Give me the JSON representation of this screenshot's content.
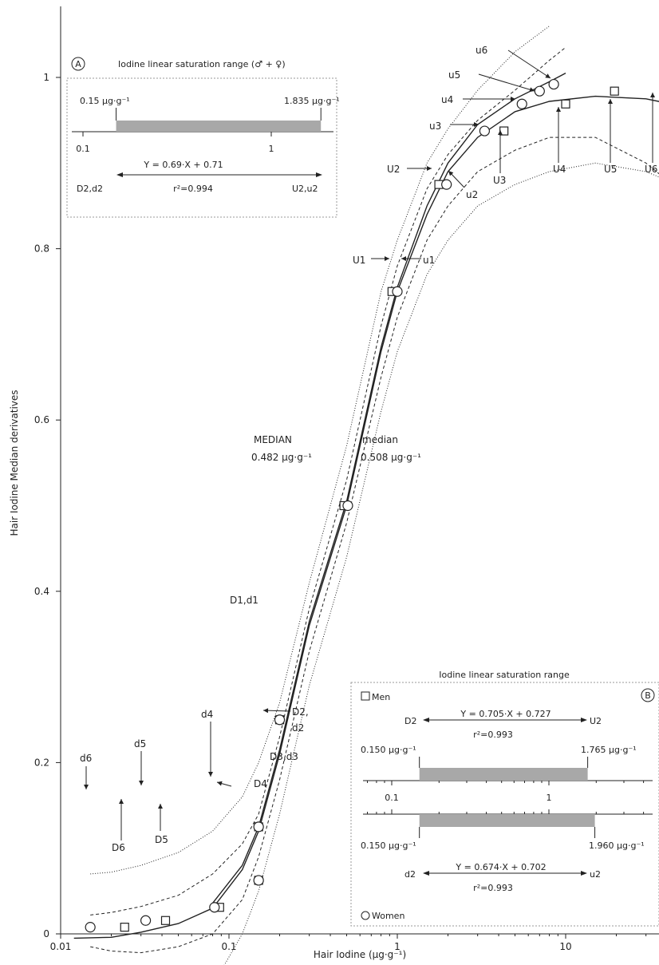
{
  "chart_data": {
    "type": "scatter",
    "xlabel": "Hair Iodine (µg·g⁻¹)",
    "ylabel": "Hair Iodine Median derivatives",
    "x_scale": "log",
    "xlim": [
      0.01,
      40
    ],
    "ylim": [
      0,
      1.05
    ],
    "x_ticks": [
      0.01,
      0.1,
      1,
      10
    ],
    "x_tick_labels": [
      "0.01",
      "0.1",
      "1",
      "10"
    ],
    "y_ticks": [
      0,
      0.2,
      0.4,
      0.6,
      0.8,
      1
    ],
    "y_tick_labels": [
      "0",
      "0.2",
      "0.4",
      "0.6",
      "0.8",
      "1"
    ],
    "series": [
      {
        "name": "Men",
        "marker": "square",
        "points": [
          {
            "label": "D6",
            "x": 0.024,
            "y": 0.0078
          },
          {
            "label": "D5",
            "x": 0.042,
            "y": 0.0156
          },
          {
            "label": "D4",
            "x": 0.088,
            "y": 0.031
          },
          {
            "label": "D3,d3",
            "x": 0.15,
            "y": 0.0625
          },
          {
            "label": "D2",
            "x": 0.15,
            "y": 0.125
          },
          {
            "label": "D1,d1",
            "x": 0.2,
            "y": 0.25
          },
          {
            "label": "MEDIAN",
            "x": 0.482,
            "y": 0.5
          },
          {
            "label": "U1",
            "x": 0.93,
            "y": 0.75
          },
          {
            "label": "U2",
            "x": 1.765,
            "y": 0.875
          },
          {
            "label": "U3",
            "x": 4.3,
            "y": 0.9375
          },
          {
            "label": "U4",
            "x": 10,
            "y": 0.969
          },
          {
            "label": "U5",
            "x": 19.5,
            "y": 0.984
          },
          {
            "label": "U6",
            "x": 37,
            "y": 0.992
          }
        ]
      },
      {
        "name": "Women",
        "marker": "circle",
        "points": [
          {
            "label": "d6",
            "x": 0.015,
            "y": 0.0078
          },
          {
            "label": "d5",
            "x": 0.032,
            "y": 0.0156
          },
          {
            "label": "d4",
            "x": 0.082,
            "y": 0.031
          },
          {
            "label": "d3",
            "x": 0.15,
            "y": 0.0625
          },
          {
            "label": "d2",
            "x": 0.15,
            "y": 0.125
          },
          {
            "label": "d1",
            "x": 0.2,
            "y": 0.25
          },
          {
            "label": "median",
            "x": 0.508,
            "y": 0.5
          },
          {
            "label": "u1",
            "x": 1.0,
            "y": 0.75
          },
          {
            "label": "u2",
            "x": 1.96,
            "y": 0.875
          },
          {
            "label": "u3",
            "x": 3.3,
            "y": 0.9375
          },
          {
            "label": "u4",
            "x": 5.5,
            "y": 0.969
          },
          {
            "label": "u5",
            "x": 7.0,
            "y": 0.984
          },
          {
            "label": "u6",
            "x": 8.5,
            "y": 0.992
          }
        ]
      }
    ],
    "curves": [
      {
        "style": "solid",
        "points": [
          [
            0.012,
            -0.005
          ],
          [
            0.02,
            -0.004
          ],
          [
            0.03,
            0.002
          ],
          [
            0.05,
            0.012
          ],
          [
            0.08,
            0.03
          ],
          [
            0.12,
            0.075
          ],
          [
            0.15,
            0.12
          ],
          [
            0.2,
            0.21
          ],
          [
            0.3,
            0.36
          ],
          [
            0.5,
            0.5
          ],
          [
            0.8,
            0.68
          ],
          [
            1.0,
            0.75
          ],
          [
            1.5,
            0.84
          ],
          [
            2.0,
            0.89
          ],
          [
            3.0,
            0.93
          ],
          [
            5.0,
            0.96
          ],
          [
            8.0,
            0.972
          ],
          [
            15,
            0.978
          ],
          [
            30,
            0.975
          ],
          [
            40,
            0.97
          ]
        ]
      },
      {
        "style": "solid",
        "points": [
          [
            0.08,
            0.036
          ],
          [
            0.12,
            0.08
          ],
          [
            0.15,
            0.125
          ],
          [
            0.2,
            0.215
          ],
          [
            0.3,
            0.365
          ],
          [
            0.5,
            0.505
          ],
          [
            0.8,
            0.685
          ],
          [
            1.0,
            0.755
          ],
          [
            1.5,
            0.85
          ],
          [
            2.0,
            0.9
          ],
          [
            3.0,
            0.945
          ],
          [
            5.0,
            0.975
          ],
          [
            8.0,
            0.995
          ],
          [
            10,
            1.005
          ]
        ]
      },
      {
        "style": "dashed",
        "points": [
          [
            0.015,
            0.022
          ],
          [
            0.02,
            0.025
          ],
          [
            0.03,
            0.032
          ],
          [
            0.05,
            0.045
          ],
          [
            0.08,
            0.07
          ],
          [
            0.12,
            0.105
          ],
          [
            0.15,
            0.14
          ],
          [
            0.2,
            0.23
          ],
          [
            0.3,
            0.38
          ],
          [
            0.5,
            0.53
          ],
          [
            0.8,
            0.71
          ],
          [
            1.0,
            0.78
          ],
          [
            1.5,
            0.87
          ],
          [
            2.0,
            0.91
          ],
          [
            3.0,
            0.95
          ],
          [
            5.0,
            0.985
          ],
          [
            8.0,
            1.02
          ],
          [
            10,
            1.035
          ]
        ]
      },
      {
        "style": "dashed",
        "points": [
          [
            0.015,
            -0.015
          ],
          [
            0.02,
            -0.02
          ],
          [
            0.03,
            -0.022
          ],
          [
            0.05,
            -0.015
          ],
          [
            0.08,
            0.0
          ],
          [
            0.12,
            0.04
          ],
          [
            0.15,
            0.09
          ],
          [
            0.2,
            0.18
          ],
          [
            0.3,
            0.33
          ],
          [
            0.5,
            0.48
          ],
          [
            0.8,
            0.65
          ],
          [
            1.0,
            0.72
          ],
          [
            1.5,
            0.81
          ],
          [
            2.0,
            0.85
          ],
          [
            3.0,
            0.89
          ],
          [
            5.0,
            0.915
          ],
          [
            8.0,
            0.93
          ],
          [
            15,
            0.93
          ],
          [
            30,
            0.9
          ],
          [
            40,
            0.88
          ]
        ]
      },
      {
        "style": "dotted",
        "points": [
          [
            0.015,
            0.07
          ],
          [
            0.02,
            0.072
          ],
          [
            0.03,
            0.08
          ],
          [
            0.05,
            0.095
          ],
          [
            0.08,
            0.12
          ],
          [
            0.12,
            0.16
          ],
          [
            0.15,
            0.2
          ],
          [
            0.2,
            0.27
          ],
          [
            0.3,
            0.41
          ],
          [
            0.5,
            0.57
          ],
          [
            0.8,
            0.75
          ],
          [
            1.0,
            0.81
          ],
          [
            1.5,
            0.9
          ],
          [
            2.0,
            0.94
          ],
          [
            3.0,
            0.985
          ],
          [
            5.0,
            1.03
          ],
          [
            8.0,
            1.06
          ]
        ]
      },
      {
        "style": "dotted",
        "points": [
          [
            0.015,
            -0.045
          ],
          [
            0.02,
            -0.06
          ],
          [
            0.03,
            -0.075
          ],
          [
            0.05,
            -0.08
          ],
          [
            0.08,
            -0.06
          ],
          [
            0.12,
            0.0
          ],
          [
            0.15,
            0.05
          ],
          [
            0.2,
            0.14
          ],
          [
            0.3,
            0.29
          ],
          [
            0.5,
            0.44
          ],
          [
            0.8,
            0.61
          ],
          [
            1.0,
            0.68
          ],
          [
            1.5,
            0.77
          ],
          [
            2.0,
            0.81
          ],
          [
            3.0,
            0.85
          ],
          [
            5.0,
            0.875
          ],
          [
            8.0,
            0.89
          ],
          [
            15,
            0.9
          ],
          [
            30,
            0.89
          ],
          [
            40,
            0.88
          ]
        ]
      }
    ],
    "annotations": {
      "median_men": {
        "line1": "MEDIAN",
        "line2": "0.482 µg·g⁻¹"
      },
      "median_women": {
        "line1": "median",
        "line2": "0.508 µg·g⁻¹"
      },
      "labels": {
        "U1": "U1",
        "u1": "u1",
        "U2": "U2",
        "u2": "u2",
        "U3": "U3",
        "u3": "u3",
        "U4": "U4",
        "u4": "u4",
        "U5": "U5",
        "u5": "u5",
        "U6": "U6",
        "u6": "u6",
        "D1d1": "D1,d1",
        "D2": "D2,",
        "d2": "d2",
        "D3d3": "D3,d3",
        "D4": "D4",
        "d4": "d4",
        "d5": "d5",
        "D5": "D5",
        "d6": "d6",
        "D6": "D6"
      }
    },
    "inset_A": {
      "badge": "A",
      "title": "Iodine linear saturation range (♂ + ♀)",
      "range": [
        0.15,
        1.835
      ],
      "low_label": "0.15 µg·g⁻¹",
      "high_label": "1.835 µg·g⁻¹",
      "ticks": [
        "0.1",
        "1"
      ],
      "equation": "Y = 0.69·X + 0.71",
      "r2": "r²=0.994",
      "left_label": "D2,d2",
      "right_label": "U2,u2"
    },
    "inset_B": {
      "badge": "B",
      "title": "Iodine linear saturation range",
      "men": {
        "legend": "Men",
        "range": [
          0.15,
          1.765
        ],
        "low_label": "0.150 µg·g⁻¹",
        "high_label": "1.765 µg·g⁻¹",
        "equation": "Y = 0.705·X + 0.727",
        "r2": "r²=0.993",
        "left_label": "D2",
        "right_label": "U2"
      },
      "women": {
        "legend": "Women",
        "range": [
          0.15,
          1.96
        ],
        "low_label": "0.150 µg·g⁻¹",
        "high_label": "1.960 µg·g⁻¹",
        "equation": "Y = 0.674·X + 0.702",
        "r2": "r²=0.993",
        "left_label": "d2",
        "right_label": "u2"
      },
      "ticks": [
        "0.1",
        "1"
      ]
    },
    "colors": {
      "axis": "#222222",
      "bar_fill": "#a8a8a8",
      "curve": "#222222",
      "box_border": "#9a9a9a"
    }
  }
}
